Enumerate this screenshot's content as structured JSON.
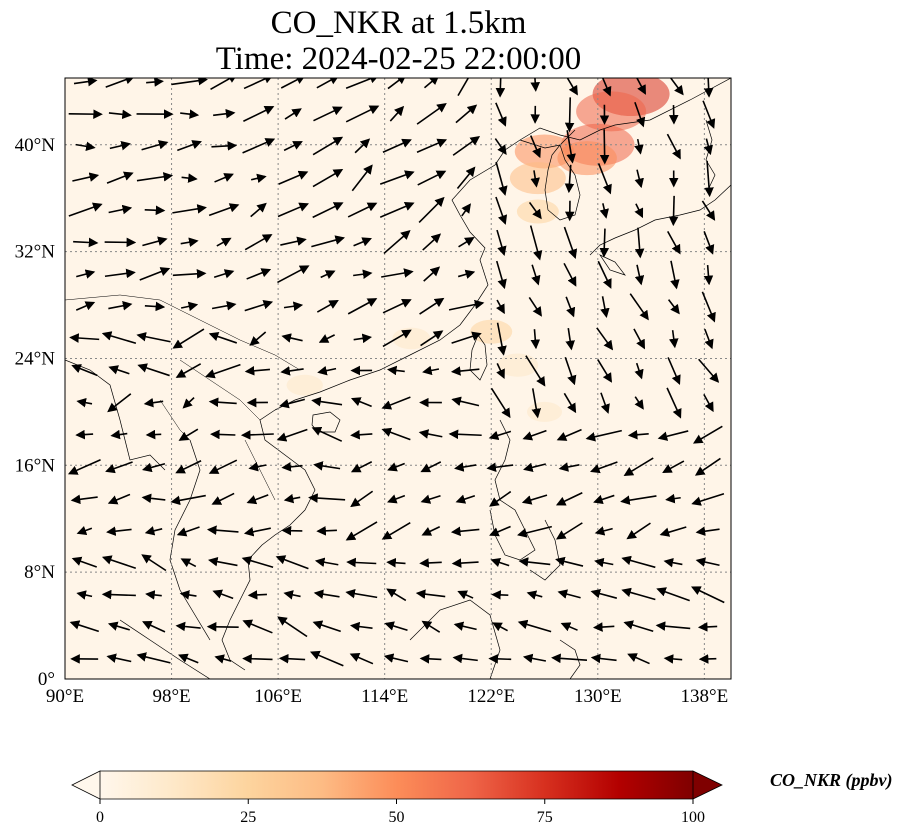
{
  "title": {
    "line1": "CO_NKR at 1.5km",
    "line2": "Time: 2024-02-25 22:00:00"
  },
  "map": {
    "lon_range": [
      90,
      140
    ],
    "lat_range": [
      0,
      45
    ],
    "lon_ticks": [
      {
        "value": 90,
        "label": "90°E"
      },
      {
        "value": 98,
        "label": "98°E"
      },
      {
        "value": 106,
        "label": "106°E"
      },
      {
        "value": 114,
        "label": "114°E"
      },
      {
        "value": 122,
        "label": "122°E"
      },
      {
        "value": 130,
        "label": "130°E"
      },
      {
        "value": 138,
        "label": "138°E"
      }
    ],
    "lat_ticks": [
      {
        "value": 0,
        "label": "0°"
      },
      {
        "value": 8,
        "label": "8°N"
      },
      {
        "value": 16,
        "label": "16°N"
      },
      {
        "value": 24,
        "label": "24°N"
      },
      {
        "value": 32,
        "label": "32°N"
      },
      {
        "value": 40,
        "label": "40°N"
      }
    ],
    "background_color": "#fff5e8",
    "coastline_color": "#000000",
    "gridline_color": "#888888"
  },
  "colorbar": {
    "label": "CO_NKR (ppbv)",
    "min": 0,
    "max": 100,
    "colormap": "OrRd",
    "ticks": [
      {
        "value": 0,
        "label": "0"
      },
      {
        "value": 25,
        "label": "25"
      },
      {
        "value": 50,
        "label": "50"
      },
      {
        "value": 75,
        "label": "75"
      },
      {
        "value": 100,
        "label": "100"
      }
    ],
    "extend": "both",
    "stops": [
      "#fff7ec",
      "#fee8c8",
      "#fdd49e",
      "#fdbb84",
      "#fc8d59",
      "#ef6548",
      "#d7301f",
      "#b30000",
      "#7f0000"
    ]
  },
  "concentration_plumes": [
    {
      "lon": 132.5,
      "lat": 43.8,
      "value": 70
    },
    {
      "lon": 131.0,
      "lat": 42.5,
      "value": 60
    },
    {
      "lon": 130.0,
      "lat": 40.0,
      "value": 65
    },
    {
      "lon": 129.2,
      "lat": 39.0,
      "value": 45
    },
    {
      "lon": 126.0,
      "lat": 39.5,
      "value": 45
    },
    {
      "lon": 125.5,
      "lat": 37.5,
      "value": 40
    },
    {
      "lon": 125.5,
      "lat": 35.0,
      "value": 20
    },
    {
      "lon": 122.0,
      "lat": 26.0,
      "value": 20
    },
    {
      "lon": 124.0,
      "lat": 23.5,
      "value": 18
    },
    {
      "lon": 116.0,
      "lat": 25.5,
      "value": 14
    },
    {
      "lon": 108.0,
      "lat": 22.0,
      "value": 12
    },
    {
      "lon": 126.0,
      "lat": 20.0,
      "value": 10
    }
  ],
  "wind_field": {
    "regions": [
      {
        "lon_min": 90,
        "lon_max": 100,
        "lat_min": 26,
        "lat_max": 45,
        "u": 1.0,
        "v": 0.1
      },
      {
        "lon_min": 100,
        "lon_max": 112,
        "lat_min": 26,
        "lat_max": 45,
        "u": 0.8,
        "v": 0.3
      },
      {
        "lon_min": 112,
        "lon_max": 122,
        "lat_min": 34,
        "lat_max": 45,
        "u": 0.6,
        "v": 0.5
      },
      {
        "lon_min": 112,
        "lon_max": 122,
        "lat_min": 24,
        "lat_max": 34,
        "u": 0.6,
        "v": 0.3
      },
      {
        "lon_min": 122,
        "lon_max": 140,
        "lat_min": 32,
        "lat_max": 45,
        "u": 0.2,
        "v": -0.8
      },
      {
        "lon_min": 122,
        "lon_max": 140,
        "lat_min": 20,
        "lat_max": 32,
        "u": 0.3,
        "v": -0.7
      },
      {
        "lon_min": 100,
        "lon_max": 122,
        "lat_min": 16,
        "lat_max": 24,
        "u": -0.7,
        "v": 0.0
      },
      {
        "lon_min": 112,
        "lon_max": 140,
        "lat_min": 10,
        "lat_max": 20,
        "u": -0.8,
        "v": -0.3
      },
      {
        "lon_min": 90,
        "lon_max": 112,
        "lat_min": 10,
        "lat_max": 16,
        "u": -0.8,
        "v": -0.1
      },
      {
        "lon_min": 90,
        "lon_max": 140,
        "lat_min": 0,
        "lat_max": 10,
        "u": -0.8,
        "v": 0.2
      }
    ]
  }
}
